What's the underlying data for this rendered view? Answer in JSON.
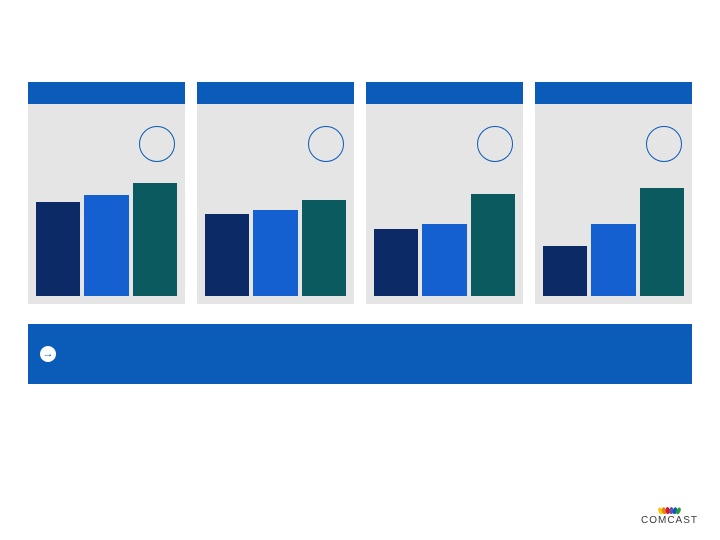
{
  "layout": {
    "background_color": "#ffffff",
    "panel_background": "#e5e5e5",
    "header_color": "#0a5cb8",
    "circle_border_color": "#0a5cb8",
    "footer_color": "#0a5cb8",
    "arrow_glyph": "→",
    "arrow_color": "#0a5cb8"
  },
  "panels": [
    {
      "bars": [
        {
          "height_pct": 78,
          "color": "#0b2a66"
        },
        {
          "height_pct": 84,
          "color": "#1560d0"
        },
        {
          "height_pct": 94,
          "color": "#0a5a5f"
        }
      ]
    },
    {
      "bars": [
        {
          "height_pct": 68,
          "color": "#0b2a66"
        },
        {
          "height_pct": 72,
          "color": "#1560d0"
        },
        {
          "height_pct": 80,
          "color": "#0a5a5f"
        }
      ]
    },
    {
      "bars": [
        {
          "height_pct": 56,
          "color": "#0b2a66"
        },
        {
          "height_pct": 60,
          "color": "#1560d0"
        },
        {
          "height_pct": 85,
          "color": "#0a5a5f"
        }
      ]
    },
    {
      "bars": [
        {
          "height_pct": 42,
          "color": "#0b2a66"
        },
        {
          "height_pct": 60,
          "color": "#1560d0"
        },
        {
          "height_pct": 90,
          "color": "#0a5a5f"
        }
      ]
    }
  ],
  "logo": {
    "text": "COMCAST",
    "text_color": "#3a3a3a",
    "feathers": [
      "#f2c500",
      "#e87d1e",
      "#d6162a",
      "#6a4fb3",
      "#0a5cb8",
      "#2e9b3a"
    ]
  }
}
